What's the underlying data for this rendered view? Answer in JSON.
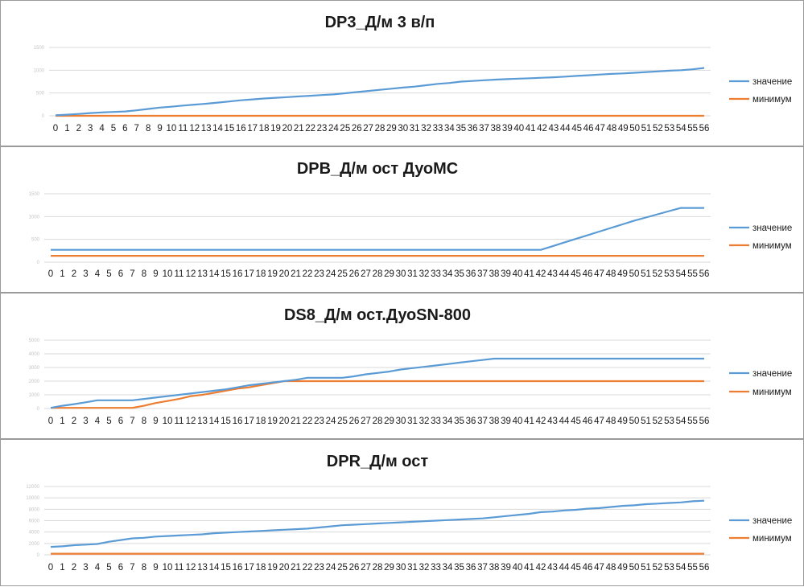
{
  "chart_data": [
    {
      "type": "line",
      "title": "DP3_Д/м 3 в/п",
      "categories": [
        "0",
        "1",
        "2",
        "3",
        "4",
        "5",
        "6",
        "7",
        "8",
        "9",
        "10",
        "11",
        "12",
        "13",
        "14",
        "15",
        "16",
        "17",
        "18",
        "19",
        "20",
        "21",
        "22",
        "23",
        "24",
        "25",
        "26",
        "27",
        "28",
        "29",
        "30",
        "31",
        "32",
        "33",
        "34",
        "35",
        "36",
        "37",
        "38",
        "39",
        "40",
        "41",
        "42",
        "43",
        "44",
        "45",
        "46",
        "47",
        "48",
        "49",
        "50",
        "51",
        "52",
        "53",
        "54",
        "55",
        "56"
      ],
      "ylim": [
        0,
        1500
      ],
      "yticks": [
        "0",
        "500",
        "1000",
        "1500"
      ],
      "legend_position": "right",
      "series": [
        {
          "name": "значение",
          "color": "#5b9bd5",
          "values": [
            10,
            25,
            40,
            60,
            75,
            85,
            95,
            120,
            150,
            180,
            200,
            225,
            245,
            265,
            290,
            315,
            340,
            360,
            380,
            395,
            410,
            425,
            440,
            455,
            470,
            495,
            520,
            545,
            570,
            595,
            620,
            640,
            670,
            700,
            720,
            750,
            765,
            780,
            795,
            805,
            815,
            825,
            835,
            845,
            860,
            875,
            890,
            905,
            920,
            930,
            945,
            960,
            975,
            990,
            1000,
            1020,
            1050
          ]
        },
        {
          "name": "минимум",
          "color": "#ed7d31",
          "values": [
            0,
            0,
            0,
            0,
            0,
            0,
            0,
            0,
            0,
            0,
            0,
            0,
            0,
            0,
            0,
            0,
            0,
            0,
            0,
            0,
            0,
            0,
            0,
            0,
            0,
            0,
            0,
            0,
            0,
            0,
            0,
            0,
            0,
            0,
            0,
            0,
            0,
            0,
            0,
            0,
            0,
            0,
            0,
            0,
            0,
            0,
            0,
            0,
            0,
            0,
            0,
            0,
            0,
            0,
            0,
            0,
            0
          ]
        }
      ]
    },
    {
      "type": "line",
      "title": "DPB_Д/м ост ДуоМС",
      "categories": [
        "0",
        "1",
        "2",
        "3",
        "4",
        "5",
        "6",
        "7",
        "8",
        "9",
        "10",
        "11",
        "12",
        "13",
        "14",
        "15",
        "16",
        "17",
        "18",
        "19",
        "20",
        "21",
        "22",
        "23",
        "24",
        "25",
        "26",
        "27",
        "28",
        "29",
        "30",
        "31",
        "32",
        "33",
        "34",
        "35",
        "36",
        "37",
        "38",
        "39",
        "40",
        "41",
        "42",
        "43",
        "44",
        "45",
        "46",
        "47",
        "48",
        "49",
        "50",
        "51",
        "52",
        "53",
        "54",
        "55",
        "56"
      ],
      "ylim": [
        0,
        1500
      ],
      "yticks": [
        "0",
        "500",
        "1000",
        "1500"
      ],
      "legend_position": "right",
      "series": [
        {
          "name": "значение",
          "color": "#5b9bd5",
          "values": [
            270,
            270,
            270,
            270,
            270,
            270,
            270,
            270,
            270,
            270,
            270,
            270,
            270,
            270,
            270,
            270,
            270,
            270,
            270,
            270,
            270,
            270,
            270,
            270,
            270,
            270,
            270,
            270,
            270,
            270,
            270,
            270,
            270,
            270,
            270,
            270,
            270,
            270,
            270,
            270,
            270,
            270,
            270,
            350,
            430,
            510,
            590,
            670,
            750,
            830,
            910,
            980,
            1050,
            1120,
            1190,
            1190,
            1190
          ]
        },
        {
          "name": "минимум",
          "color": "#ed7d31",
          "values": [
            140,
            140,
            140,
            140,
            140,
            140,
            140,
            140,
            140,
            140,
            140,
            140,
            140,
            140,
            140,
            140,
            140,
            140,
            140,
            140,
            140,
            140,
            140,
            140,
            140,
            140,
            140,
            140,
            140,
            140,
            140,
            140,
            140,
            140,
            140,
            140,
            140,
            140,
            140,
            140,
            140,
            140,
            140,
            140,
            140,
            140,
            140,
            140,
            140,
            140,
            140,
            140,
            140,
            140,
            140,
            140,
            140
          ]
        }
      ]
    },
    {
      "type": "line",
      "title": "DS8_Д/м ост.ДуоSN-800",
      "categories": [
        "0",
        "1",
        "2",
        "3",
        "4",
        "5",
        "6",
        "7",
        "8",
        "9",
        "10",
        "11",
        "12",
        "13",
        "14",
        "15",
        "16",
        "17",
        "18",
        "19",
        "20",
        "21",
        "22",
        "23",
        "24",
        "25",
        "26",
        "27",
        "28",
        "29",
        "30",
        "31",
        "32",
        "33",
        "34",
        "35",
        "36",
        "37",
        "38",
        "39",
        "40",
        "41",
        "42",
        "43",
        "44",
        "45",
        "46",
        "47",
        "48",
        "49",
        "50",
        "51",
        "52",
        "53",
        "54",
        "55",
        "56"
      ],
      "ylim": [
        0,
        5000
      ],
      "yticks": [
        "0",
        "1000",
        "2000",
        "3000",
        "4000",
        "5000"
      ],
      "legend_position": "right",
      "series": [
        {
          "name": "значение",
          "color": "#5b9bd5",
          "values": [
            50,
            200,
            320,
            450,
            600,
            600,
            600,
            600,
            700,
            800,
            900,
            1000,
            1100,
            1200,
            1300,
            1400,
            1550,
            1700,
            1800,
            1900,
            2000,
            2100,
            2250,
            2250,
            2250,
            2250,
            2350,
            2500,
            2600,
            2700,
            2850,
            2950,
            3050,
            3150,
            3250,
            3350,
            3450,
            3550,
            3650,
            3650,
            3650,
            3650,
            3650,
            3650,
            3650,
            3650,
            3650,
            3650,
            3650,
            3650,
            3650,
            3650,
            3650,
            3650,
            3650,
            3650,
            3650
          ]
        },
        {
          "name": "минимум",
          "color": "#ed7d31",
          "values": [
            50,
            50,
            50,
            50,
            50,
            50,
            50,
            50,
            200,
            400,
            550,
            700,
            900,
            1000,
            1150,
            1300,
            1450,
            1550,
            1700,
            1850,
            2000,
            2000,
            2000,
            2000,
            2000,
            2000,
            2000,
            2000,
            2000,
            2000,
            2000,
            2000,
            2000,
            2000,
            2000,
            2000,
            2000,
            2000,
            2000,
            2000,
            2000,
            2000,
            2000,
            2000,
            2000,
            2000,
            2000,
            2000,
            2000,
            2000,
            2000,
            2000,
            2000,
            2000,
            2000,
            2000,
            2000
          ]
        }
      ]
    },
    {
      "type": "line",
      "title": "DPR_Д/м ост",
      "categories": [
        "0",
        "1",
        "2",
        "3",
        "4",
        "5",
        "6",
        "7",
        "8",
        "9",
        "10",
        "11",
        "12",
        "13",
        "14",
        "15",
        "16",
        "17",
        "18",
        "19",
        "20",
        "21",
        "22",
        "23",
        "24",
        "25",
        "26",
        "27",
        "28",
        "29",
        "30",
        "31",
        "32",
        "33",
        "34",
        "35",
        "36",
        "37",
        "38",
        "39",
        "40",
        "41",
        "42",
        "43",
        "44",
        "45",
        "46",
        "47",
        "48",
        "49",
        "50",
        "51",
        "52",
        "53",
        "54",
        "55",
        "56"
      ],
      "ylim": [
        0,
        12000
      ],
      "yticks": [
        "0",
        "2000",
        "4000",
        "6000",
        "8000",
        "10000",
        "12000"
      ],
      "legend_position": "right",
      "series": [
        {
          "name": "значение",
          "color": "#5b9bd5",
          "values": [
            1400,
            1500,
            1700,
            1800,
            1900,
            2300,
            2600,
            2900,
            3000,
            3200,
            3300,
            3400,
            3500,
            3600,
            3800,
            3900,
            4000,
            4100,
            4200,
            4300,
            4400,
            4500,
            4600,
            4800,
            5000,
            5200,
            5300,
            5400,
            5500,
            5600,
            5700,
            5800,
            5900,
            6000,
            6100,
            6200,
            6300,
            6400,
            6600,
            6800,
            7000,
            7200,
            7500,
            7600,
            7800,
            7900,
            8100,
            8200,
            8400,
            8600,
            8700,
            8900,
            9000,
            9100,
            9200,
            9400,
            9500
          ]
        },
        {
          "name": "минимум",
          "color": "#ed7d31",
          "values": [
            200,
            200,
            200,
            200,
            200,
            200,
            200,
            200,
            200,
            200,
            200,
            200,
            200,
            200,
            200,
            200,
            200,
            200,
            200,
            200,
            200,
            200,
            200,
            200,
            200,
            200,
            200,
            200,
            200,
            200,
            200,
            200,
            200,
            200,
            200,
            200,
            200,
            200,
            200,
            200,
            200,
            200,
            200,
            200,
            200,
            200,
            200,
            200,
            200,
            200,
            200,
            200,
            200,
            200,
            200,
            200,
            200
          ]
        }
      ]
    }
  ]
}
